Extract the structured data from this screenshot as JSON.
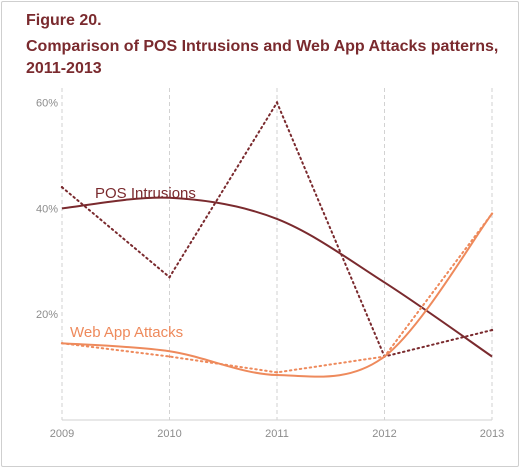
{
  "figure": {
    "label": "Figure 20.",
    "title": "Comparison of POS Intrusions and Web App Attacks patterns, 2011-2013"
  },
  "colors": {
    "pos": "#7a2a2e",
    "web": "#ee8a5c",
    "grid": "#d2d2d2",
    "axis_text": "#8c8c8c"
  },
  "chart_data": {
    "type": "line",
    "title": "Comparison of POS Intrusions and Web App Attacks patterns, 2011-2013",
    "x": [
      2009,
      2010,
      2011,
      2012,
      2013
    ],
    "xlim": [
      2009,
      2013
    ],
    "ylim": [
      0,
      0.62
    ],
    "yticks": [
      {
        "value": 0.2,
        "label": "20%"
      },
      {
        "value": 0.4,
        "label": "40%"
      },
      {
        "value": 0.6,
        "label": "60%"
      }
    ],
    "grid": "vertical dashed at each year",
    "series": [
      {
        "name": "POS Intrusions",
        "color_key": "pos",
        "actual": [
          0.44,
          0.27,
          0.6,
          0.12,
          0.17
        ],
        "trend": [
          0.4,
          0.42,
          0.38,
          0.26,
          0.12
        ]
      },
      {
        "name": "Web App Attacks",
        "color_key": "web",
        "actual": [
          0.145,
          0.12,
          0.09,
          0.12,
          0.39
        ],
        "trend": [
          0.145,
          0.13,
          0.085,
          0.12,
          0.39
        ]
      }
    ]
  }
}
